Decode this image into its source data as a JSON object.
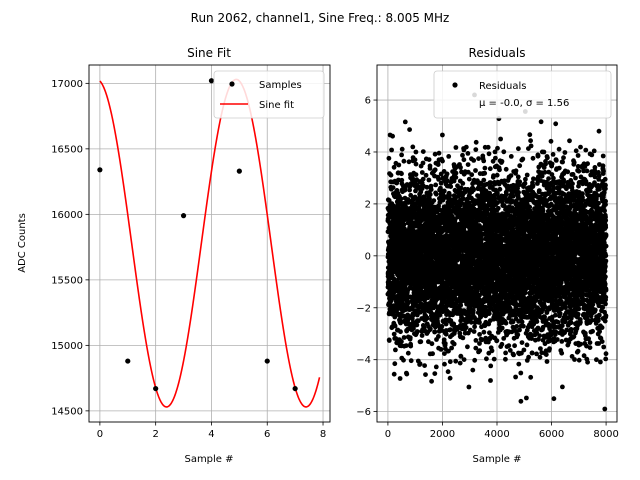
{
  "suptitle": "Run 2062, channel1, Sine Freq.: 8.005 MHz",
  "chart_data": [
    {
      "type": "line",
      "title": "Sine Fit",
      "xlabel": "Sample #",
      "ylabel": "ADC Counts",
      "xlim": [
        -0.39,
        8.25
      ],
      "ylim": [
        14415,
        17140
      ],
      "xticks": [
        0,
        2,
        4,
        6,
        8
      ],
      "xtick_labels": [
        "0",
        "2",
        "4",
        "6",
        "8"
      ],
      "yticks": [
        14500,
        15000,
        15500,
        16000,
        16500,
        17000
      ],
      "ytick_labels": [
        "14500",
        "15000",
        "15500",
        "16000",
        "16500",
        "17000"
      ],
      "grid": true,
      "legend": {
        "position": "top-right",
        "entries": [
          "Samples",
          "Sine fit"
        ]
      },
      "series": [
        {
          "name": "Samples",
          "kind": "scatter",
          "color": "#000000",
          "x": [
            0,
            1,
            2,
            3,
            4,
            5,
            6,
            7
          ],
          "y": [
            16340,
            14880,
            14670,
            15990,
            17020,
            16330,
            14880,
            14670
          ]
        },
        {
          "name": "Sine fit",
          "kind": "line",
          "color": "#ff0000",
          "function": "sine",
          "offset": 15780,
          "amplitude": 1250,
          "period": 5.0,
          "phase_deg": 98,
          "x_range": [
            0,
            7.875
          ]
        }
      ]
    },
    {
      "type": "scatter",
      "title": "Residuals",
      "xlabel": "Sample #",
      "ylabel": "",
      "xlim": [
        -400,
        8400
      ],
      "ylim": [
        -6.4,
        7.35
      ],
      "xticks": [
        0,
        2000,
        4000,
        6000,
        8000
      ],
      "xtick_labels": [
        "0",
        "2000",
        "4000",
        "6000",
        "8000"
      ],
      "yticks": [
        -6,
        -4,
        -2,
        0,
        2,
        4,
        6
      ],
      "ytick_labels": [
        "−6",
        "−4",
        "−2",
        "0",
        "2",
        "4",
        "6"
      ],
      "grid": true,
      "legend": {
        "position": "top-right",
        "entries": [
          "Residuals"
        ]
      },
      "series": [
        {
          "name": "Residuals",
          "color": "#000000",
          "n_points": 8000,
          "x_range": [
            0,
            7999
          ],
          "distribution": {
            "mean": 0.0,
            "std": 1.56,
            "min": -5.9,
            "max": 6.2
          },
          "annotation": "μ = -0.0, σ = 1.56"
        }
      ]
    }
  ]
}
